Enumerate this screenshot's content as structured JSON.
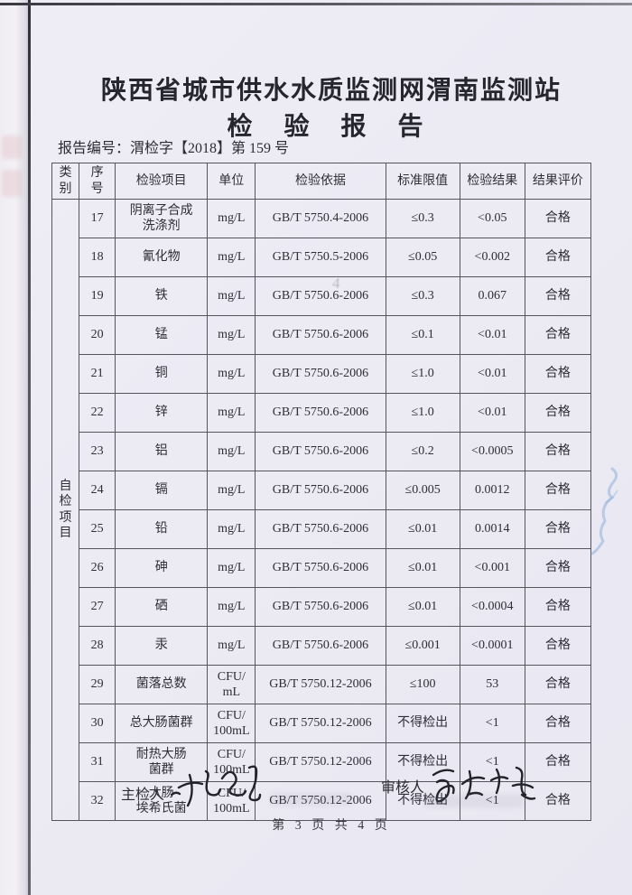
{
  "doc": {
    "title": "陕西省城市供水水质监测网渭南监测站",
    "subtitle": "检 验 报 告",
    "report_no_label": "报告编号：",
    "report_no_value": "渭检字【2018】第 159 号",
    "footer_page": "第 3 页 共 4 页",
    "inspector_label": "主检人",
    "reviewer_label": "审核人",
    "faint_mark": "4"
  },
  "table": {
    "headers": [
      "类别",
      "序\n号",
      "检验项目",
      "单位",
      "检验依据",
      "标准限值",
      "检验结果",
      "结果评价"
    ],
    "category": "自检\n项目",
    "rows": [
      {
        "no": "17",
        "item": "阴离子合成\n洗涤剂",
        "unit": "mg/L",
        "basis": "GB/T 5750.4-2006",
        "limit": "≤0.3",
        "result": "<0.05",
        "evaluation": "合格"
      },
      {
        "no": "18",
        "item": "氰化物",
        "unit": "mg/L",
        "basis": "GB/T 5750.5-2006",
        "limit": "≤0.05",
        "result": "<0.002",
        "evaluation": "合格"
      },
      {
        "no": "19",
        "item": "铁",
        "unit": "mg/L",
        "basis": "GB/T 5750.6-2006",
        "limit": "≤0.3",
        "result": "0.067",
        "evaluation": "合格"
      },
      {
        "no": "20",
        "item": "锰",
        "unit": "mg/L",
        "basis": "GB/T 5750.6-2006",
        "limit": "≤0.1",
        "result": "<0.01",
        "evaluation": "合格"
      },
      {
        "no": "21",
        "item": "铜",
        "unit": "mg/L",
        "basis": "GB/T 5750.6-2006",
        "limit": "≤1.0",
        "result": "<0.01",
        "evaluation": "合格"
      },
      {
        "no": "22",
        "item": "锌",
        "unit": "mg/L",
        "basis": "GB/T 5750.6-2006",
        "limit": "≤1.0",
        "result": "<0.01",
        "evaluation": "合格"
      },
      {
        "no": "23",
        "item": "铝",
        "unit": "mg/L",
        "basis": "GB/T 5750.6-2006",
        "limit": "≤0.2",
        "result": "<0.0005",
        "evaluation": "合格"
      },
      {
        "no": "24",
        "item": "镉",
        "unit": "mg/L",
        "basis": "GB/T 5750.6-2006",
        "limit": "≤0.005",
        "result": "0.0012",
        "evaluation": "合格"
      },
      {
        "no": "25",
        "item": "铅",
        "unit": "mg/L",
        "basis": "GB/T 5750.6-2006",
        "limit": "≤0.01",
        "result": "0.0014",
        "evaluation": "合格"
      },
      {
        "no": "26",
        "item": "砷",
        "unit": "mg/L",
        "basis": "GB/T 5750.6-2006",
        "limit": "≤0.01",
        "result": "<0.001",
        "evaluation": "合格"
      },
      {
        "no": "27",
        "item": "硒",
        "unit": "mg/L",
        "basis": "GB/T 5750.6-2006",
        "limit": "≤0.01",
        "result": "<0.0004",
        "evaluation": "合格"
      },
      {
        "no": "28",
        "item": "汞",
        "unit": "mg/L",
        "basis": "GB/T 5750.6-2006",
        "limit": "≤0.001",
        "result": "<0.0001",
        "evaluation": "合格"
      },
      {
        "no": "29",
        "item": "菌落总数",
        "unit": "CFU/\nmL",
        "basis": "GB/T 5750.12-2006",
        "limit": "≤100",
        "result": "53",
        "evaluation": "合格"
      },
      {
        "no": "30",
        "item": "总大肠菌群",
        "unit": "CFU/\n100mL",
        "basis": "GB/T 5750.12-2006",
        "limit": "不得检出",
        "result": "<1",
        "evaluation": "合格"
      },
      {
        "no": "31",
        "item": "耐热大肠\n菌群",
        "unit": "CFU/\n100mL",
        "basis": "GB/T 5750.12-2006",
        "limit": "不得检出",
        "result": "<1",
        "evaluation": "合格"
      },
      {
        "no": "32",
        "item": "大肠\n埃希氏菌",
        "unit": "CFU/\n100mL",
        "basis": "GB/T 5750.12-2006",
        "limit": "不得检出",
        "result": "<1",
        "evaluation": "合格"
      }
    ]
  }
}
